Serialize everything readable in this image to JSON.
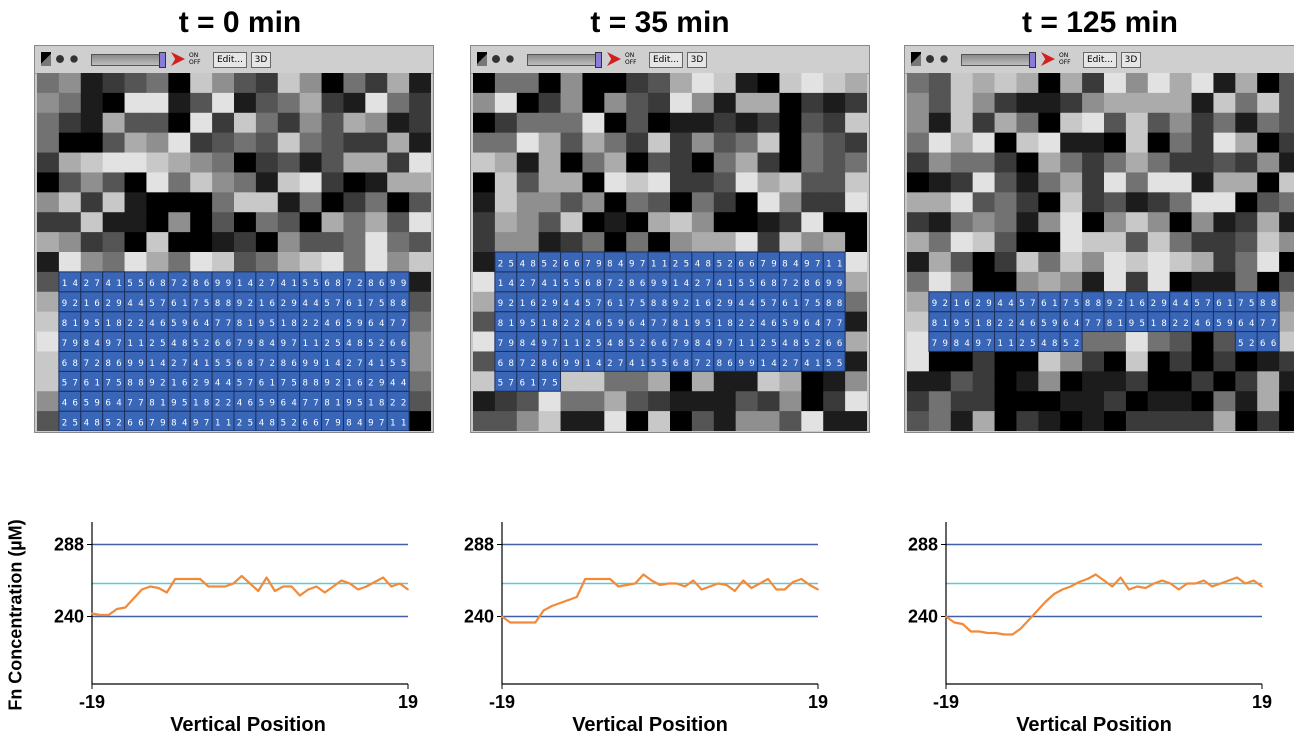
{
  "panels": [
    {
      "title": "t = 0 min"
    },
    {
      "title": "t = 35 min"
    },
    {
      "title": "t = 125 min"
    }
  ],
  "toolbar": {
    "onoff_label": "ON OFF",
    "edit_label": "Edit...",
    "view3d_label": "3D"
  },
  "cell_digits": [
    "1",
    "2",
    "4",
    "5",
    "6",
    "7",
    "8",
    "9"
  ],
  "colors": {
    "cell_fill": "#3a66b8",
    "cell_border": "#1c2f5e",
    "band_line": "#3f5fa6",
    "mean_line": "#5ec9d1",
    "profile_line": "#f28a3b"
  },
  "chart_data": [
    {
      "type": "line",
      "x": [
        -19,
        -18,
        -17,
        -16,
        -15,
        -14,
        -13,
        -12,
        -11,
        -10,
        -9,
        -8,
        -7,
        -6,
        -5,
        -4,
        -3,
        -2,
        -1,
        0,
        1,
        2,
        3,
        4,
        5,
        6,
        7,
        8,
        9,
        10,
        11,
        12,
        13,
        14,
        15,
        16,
        17,
        18,
        19
      ],
      "series": [
        {
          "values": [
            242,
            241,
            241,
            245,
            246,
            252,
            258,
            260,
            259,
            256,
            265,
            265,
            265,
            265,
            260,
            260,
            260,
            262,
            267,
            262,
            257,
            266,
            257,
            260,
            260,
            254,
            258,
            260,
            256,
            260,
            264,
            262,
            258,
            260,
            263,
            266,
            260,
            262,
            258
          ]
        }
      ],
      "reference_lines": [
        288,
        262,
        240
      ],
      "xlabel": "Vertical Position",
      "ylabel": "Fn Concentration (µM)",
      "yticks": [
        288,
        240
      ],
      "xticks": [
        -19,
        19
      ],
      "xlim": [
        -19,
        19
      ],
      "ylim": [
        195,
        303
      ]
    },
    {
      "type": "line",
      "x": [
        -19,
        -18,
        -17,
        -16,
        -15,
        -14,
        -13,
        -12,
        -11,
        -10,
        -9,
        -8,
        -7,
        -6,
        -5,
        -4,
        -3,
        -2,
        -1,
        0,
        1,
        2,
        3,
        4,
        5,
        6,
        7,
        8,
        9,
        10,
        11,
        12,
        13,
        14,
        15,
        16,
        17,
        18,
        19
      ],
      "series": [
        {
          "values": [
            240,
            236,
            236,
            236,
            236,
            244,
            247,
            249,
            251,
            253,
            265,
            265,
            265,
            265,
            260,
            261,
            262,
            268,
            264,
            261,
            262,
            262,
            260,
            264,
            258,
            260,
            262,
            261,
            257,
            264,
            259,
            262,
            265,
            258,
            258,
            263,
            265,
            261,
            258
          ]
        }
      ],
      "reference_lines": [
        288,
        262,
        240
      ],
      "xlabel": "Vertical Position",
      "ylabel": "",
      "yticks": [
        288,
        240
      ],
      "xticks": [
        -19,
        19
      ],
      "xlim": [
        -19,
        19
      ],
      "ylim": [
        195,
        303
      ]
    },
    {
      "type": "line",
      "x": [
        -19,
        -18,
        -17,
        -16,
        -15,
        -14,
        -13,
        -12,
        -11,
        -10,
        -9,
        -8,
        -7,
        -6,
        -5,
        -4,
        -3,
        -2,
        -1,
        0,
        1,
        2,
        3,
        4,
        5,
        6,
        7,
        8,
        9,
        10,
        11,
        12,
        13,
        14,
        15,
        16,
        17,
        18,
        19
      ],
      "series": [
        {
          "values": [
            240,
            236,
            235,
            230,
            230,
            229,
            229,
            228,
            228,
            232,
            238,
            244,
            250,
            255,
            258,
            260,
            263,
            265,
            268,
            264,
            260,
            266,
            258,
            260,
            259,
            262,
            264,
            262,
            258,
            262,
            262,
            264,
            260,
            262,
            264,
            266,
            262,
            264,
            260
          ]
        }
      ],
      "reference_lines": [
        288,
        262,
        240
      ],
      "xlabel": "Vertical Position",
      "ylabel": "",
      "yticks": [
        288,
        240
      ],
      "xticks": [
        -19,
        19
      ],
      "xlim": [
        -19,
        19
      ],
      "ylim": [
        195,
        303
      ]
    }
  ]
}
